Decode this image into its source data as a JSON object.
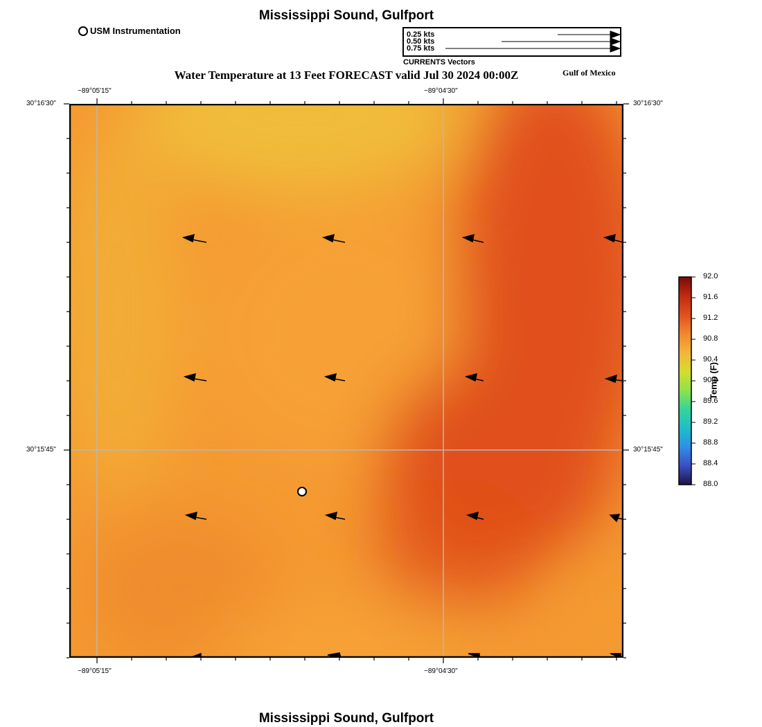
{
  "title": "Mississippi Sound, Gulfport",
  "subtitle": "Water Temperature at 13 Feet FORECAST valid Jul 30 2024 00:00Z",
  "region_label": "Gulf of Mexico",
  "instrument_legend": "USM Instrumentation",
  "vector_legend": {
    "caption": "CURRENTS Vectors",
    "scales": [
      "0.25 kts",
      "0.50 kts",
      "0.75 kts"
    ]
  },
  "axes": {
    "lon_labels": [
      "−89°05'15\"",
      "−89°04'30\""
    ],
    "lat_labels": [
      "30°16'30\"",
      "30°15'45\""
    ]
  },
  "colorbar": {
    "title": "Temp (F)",
    "ticks": [
      "92.0",
      "91.6",
      "91.2",
      "90.8",
      "90.4",
      "90.0",
      "89.6",
      "89.2",
      "88.8",
      "88.4",
      "88.0"
    ],
    "min": 88.0,
    "max": 92.0,
    "colors": [
      "#1e1446",
      "#3a4fc4",
      "#2f8ee8",
      "#1fbfc8",
      "#36d49a",
      "#8fe24a",
      "#d6dc2c",
      "#f4b43a",
      "#f0882e",
      "#e0501e",
      "#c02a10",
      "#7a0a08"
    ]
  },
  "field_colors": {
    "background": "#f59a32",
    "cool_top": "#f0bc3a",
    "warm_right": "#e0501a"
  }
}
